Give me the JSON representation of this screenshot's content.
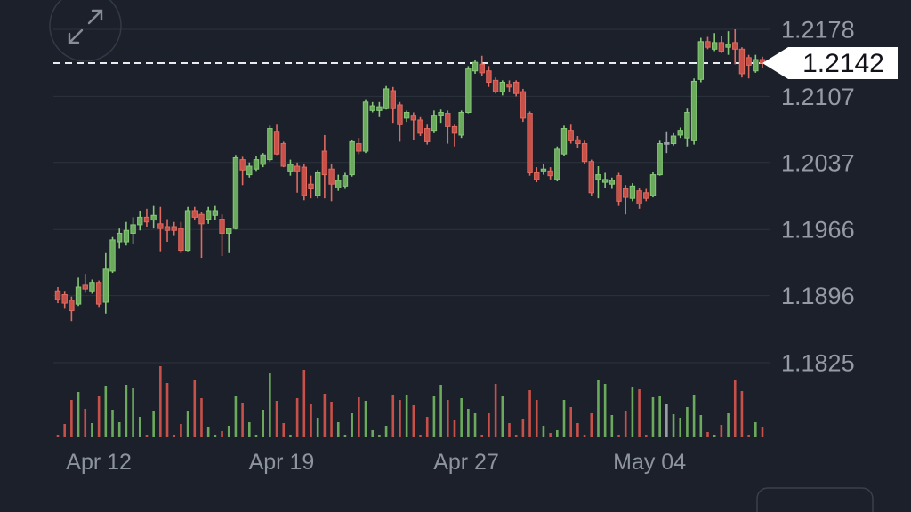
{
  "meta": {
    "view": "fx-candlestick-chart",
    "size": "1024x576"
  },
  "controls": {
    "expand_button": {
      "icon": "expand-arrows-icon"
    },
    "partial_corner_button": {
      "label": ""
    }
  },
  "price_tag": {
    "value": "1.2142"
  },
  "axes": {
    "y_tick_labels": [
      "1.2178",
      "1.2107",
      "1.2037",
      "1.1966",
      "1.1896",
      "1.1825"
    ],
    "x_tick_labels": [
      {
        "label": "Apr 12",
        "i": 6.0
      },
      {
        "label": "Apr 19",
        "i": 32.7
      },
      {
        "label": "Apr 27",
        "i": 59.7
      },
      {
        "label": "May 04",
        "i": 86.5
      }
    ]
  },
  "colors": {
    "background": "#1b202b",
    "gridline": "#2c323c",
    "axis_label": "#959ba5",
    "date_label": "#8e949e",
    "up_fill": "#6baa5c",
    "up_edge": "#86c878",
    "down_fill": "#c75049",
    "down_edge": "#de6a60",
    "neutral": "#9aa0a8",
    "last_price_line": "#e9ebee",
    "tag_bg": "#ffffff",
    "tag_text": "#111318",
    "icon_stroke": "#878d97",
    "button_border": "#3a404b"
  },
  "chart_data": {
    "type": "candlestick",
    "title": "",
    "xlabel": "",
    "ylabel": "",
    "grid": true,
    "legend_position": "none",
    "last_price": 1.2142,
    "ylim": [
      1.1825,
      1.2178
    ],
    "y_gridline_prices": [
      1.2178,
      1.2107,
      1.2037,
      1.1966,
      1.1896,
      1.1825
    ],
    "x_ticks": [
      "Apr 12",
      "Apr 19",
      "Apr 27",
      "May 04"
    ],
    "neutral_indices": [
      89
    ],
    "ohlc": [
      [
        1.1901,
        1.1905,
        1.1888,
        1.1892
      ],
      [
        1.1897,
        1.1901,
        1.1882,
        1.1888
      ],
      [
        1.1891,
        1.1895,
        1.1869,
        1.188
      ],
      [
        1.1887,
        1.1915,
        1.1885,
        1.1905
      ],
      [
        1.1907,
        1.1919,
        1.1899,
        1.1903
      ],
      [
        1.1901,
        1.1913,
        1.1898,
        1.191
      ],
      [
        1.191,
        1.1912,
        1.1884,
        1.1887
      ],
      [
        1.1889,
        1.1941,
        1.1877,
        1.1924
      ],
      [
        1.1922,
        1.1958,
        1.192,
        1.1955
      ],
      [
        1.1953,
        1.1967,
        1.1946,
        1.1962
      ],
      [
        1.1953,
        1.1974,
        1.1949,
        1.1965
      ],
      [
        1.1962,
        1.1979,
        1.1951,
        1.1971
      ],
      [
        1.1971,
        1.1986,
        1.1965,
        1.1979
      ],
      [
        1.1979,
        1.1988,
        1.1969,
        1.1974
      ],
      [
        1.1976,
        1.1991,
        1.1967,
        1.1981
      ],
      [
        1.1972,
        1.199,
        1.1943,
        1.1967
      ],
      [
        1.1969,
        1.1977,
        1.1953,
        1.1965
      ],
      [
        1.1969,
        1.1974,
        1.196,
        1.1965
      ],
      [
        1.1967,
        1.1974,
        1.1941,
        1.1944
      ],
      [
        1.1944,
        1.199,
        1.1943,
        1.1986
      ],
      [
        1.1986,
        1.199,
        1.1976,
        1.1979
      ],
      [
        1.1982,
        1.1985,
        1.1936,
        1.1972
      ],
      [
        1.1977,
        1.199,
        1.1972,
        1.1986
      ],
      [
        1.1981,
        1.1991,
        1.1976,
        1.1986
      ],
      [
        1.1977,
        1.1982,
        1.1938,
        1.1962
      ],
      [
        1.1962,
        1.1968,
        1.1941,
        1.1967
      ],
      [
        1.1967,
        1.2045,
        1.1966,
        1.2042
      ],
      [
        1.204,
        1.2043,
        1.2013,
        1.2029
      ],
      [
        1.2024,
        1.2037,
        1.2021,
        1.2033
      ],
      [
        1.203,
        1.2044,
        1.2028,
        1.204
      ],
      [
        1.2035,
        1.2047,
        1.2032,
        1.2045
      ],
      [
        1.204,
        1.2076,
        1.2038,
        1.2073
      ],
      [
        1.207,
        1.2077,
        1.2045,
        1.2046
      ],
      [
        1.2057,
        1.2059,
        1.2032,
        1.2033
      ],
      [
        1.2028,
        1.204,
        1.2023,
        1.2035
      ],
      [
        1.2033,
        1.2037,
        1.2005,
        1.2028
      ],
      [
        1.2032,
        1.2035,
        1.1997,
        1.2002
      ],
      [
        1.2014,
        1.2023,
        1.1999,
        1.2009
      ],
      [
        1.2002,
        1.2029,
        1.1999,
        1.2026
      ],
      [
        1.2049,
        1.2066,
        1.1999,
        1.2024
      ],
      [
        1.203,
        1.2035,
        1.1996,
        1.2014
      ],
      [
        1.201,
        1.2024,
        1.2007,
        1.2018
      ],
      [
        1.2012,
        1.2026,
        1.2009,
        1.2023
      ],
      [
        1.2024,
        1.2061,
        1.2022,
        1.2059
      ],
      [
        1.2057,
        1.2063,
        1.2046,
        1.2049
      ],
      [
        1.2049,
        1.2104,
        1.2047,
        1.2101
      ],
      [
        1.2092,
        1.2101,
        1.209,
        1.2097
      ],
      [
        1.2092,
        1.2101,
        1.2085,
        1.2096
      ],
      [
        1.2094,
        1.2118,
        1.2093,
        1.2115
      ],
      [
        1.2113,
        1.2117,
        1.2079,
        1.2094
      ],
      [
        1.2098,
        1.2101,
        1.2059,
        1.2077
      ],
      [
        1.2084,
        1.2092,
        1.208,
        1.209
      ],
      [
        1.2087,
        1.209,
        1.2061,
        1.2082
      ],
      [
        1.2082,
        1.2085,
        1.2065,
        1.2068
      ],
      [
        1.2073,
        1.2077,
        1.2056,
        1.2059
      ],
      [
        1.2071,
        1.2092,
        1.2068,
        1.2087
      ],
      [
        1.2087,
        1.2093,
        1.2079,
        1.209
      ],
      [
        1.2089,
        1.2092,
        1.2057,
        1.2075
      ],
      [
        1.2075,
        1.2077,
        1.2054,
        1.2068
      ],
      [
        1.2066,
        1.2092,
        1.2063,
        1.209
      ],
      [
        1.209,
        1.2139,
        1.2089,
        1.2136
      ],
      [
        1.2134,
        1.2146,
        1.2131,
        1.2143
      ],
      [
        1.2141,
        1.215,
        1.2129,
        1.2132
      ],
      [
        1.2134,
        1.2139,
        1.2117,
        1.2122
      ],
      [
        1.2124,
        1.2127,
        1.211,
        1.2112
      ],
      [
        1.2112,
        1.2124,
        1.2108,
        1.2122
      ],
      [
        1.212,
        1.2124,
        1.2112,
        1.2117
      ],
      [
        1.2122,
        1.2124,
        1.2107,
        1.211
      ],
      [
        1.2112,
        1.2115,
        1.208,
        1.2084
      ],
      [
        1.2089,
        1.2091,
        1.2023,
        1.2026
      ],
      [
        1.2026,
        1.2032,
        1.2016,
        1.2019
      ],
      [
        1.2028,
        1.2035,
        1.2024,
        1.203
      ],
      [
        1.2028,
        1.2032,
        1.2019,
        1.2023
      ],
      [
        1.2019,
        1.2054,
        1.2017,
        1.2051
      ],
      [
        1.2046,
        1.2076,
        1.2044,
        1.2073
      ],
      [
        1.2071,
        1.2077,
        1.2057,
        1.206
      ],
      [
        1.2061,
        1.2065,
        1.2052,
        1.2057
      ],
      [
        1.2057,
        1.206,
        1.2035,
        1.2038
      ],
      [
        1.2038,
        1.204,
        1.2002,
        1.2005
      ],
      [
        1.2019,
        1.2033,
        1.1999,
        1.2024
      ],
      [
        1.2016,
        1.2026,
        1.201,
        1.2019
      ],
      [
        1.2014,
        1.2021,
        1.2009,
        1.2018
      ],
      [
        1.2023,
        1.2026,
        1.1991,
        1.1996
      ],
      [
        1.2009,
        1.2013,
        1.1982,
        1.2
      ],
      [
        1.1999,
        1.2015,
        1.1996,
        1.2012
      ],
      [
        1.2007,
        1.201,
        1.1988,
        1.1993
      ],
      [
        1.2005,
        1.2009,
        1.1996,
        1.1999
      ],
      [
        1.2002,
        1.2027,
        1.2,
        1.2024
      ],
      [
        1.2024,
        1.206,
        1.2023,
        1.2057
      ],
      [
        1.2058,
        1.207,
        1.2047,
        1.2058
      ],
      [
        1.2057,
        1.2068,
        1.2055,
        1.2065
      ],
      [
        1.2066,
        1.2074,
        1.2063,
        1.2071
      ],
      [
        1.2063,
        1.2094,
        1.2054,
        1.209
      ],
      [
        1.206,
        1.2126,
        1.2056,
        1.2123
      ],
      [
        1.2125,
        1.2169,
        1.2122,
        1.2165
      ],
      [
        1.2165,
        1.217,
        1.2157,
        1.2159
      ],
      [
        1.2157,
        1.2174,
        1.2155,
        1.2164
      ],
      [
        1.2164,
        1.2171,
        1.2153,
        1.2155
      ],
      [
        1.2159,
        1.2176,
        1.2151,
        1.2162
      ],
      [
        1.2164,
        1.2178,
        1.2141,
        1.2157
      ],
      [
        1.2157,
        1.2159,
        1.2127,
        1.2131
      ],
      [
        1.2148,
        1.2151,
        1.2126,
        1.214
      ],
      [
        1.2134,
        1.2151,
        1.2132,
        1.2146
      ],
      [
        1.2146,
        1.2149,
        1.2137,
        1.2142
      ]
    ],
    "volume": [
      3,
      15,
      42,
      51,
      32,
      16,
      46,
      58,
      31,
      17,
      59,
      55,
      23,
      3,
      30,
      80,
      61,
      3,
      15,
      30,
      64,
      44,
      12,
      3,
      7,
      13,
      47,
      39,
      17,
      3,
      31,
      72,
      41,
      16,
      3,
      44,
      76,
      37,
      22,
      49,
      40,
      17,
      3,
      27,
      45,
      41,
      8,
      3,
      13,
      48,
      42,
      48,
      36,
      3,
      23,
      47,
      59,
      42,
      20,
      44,
      32,
      27,
      3,
      27,
      60,
      46,
      16,
      3,
      21,
      53,
      42,
      13,
      5,
      8,
      42,
      34,
      16,
      3,
      27,
      64,
      60,
      25,
      3,
      30,
      57,
      54,
      3,
      45,
      47,
      38,
      26,
      22,
      34,
      48,
      25,
      6,
      3,
      14,
      27,
      64,
      52,
      3,
      17,
      12
    ]
  }
}
